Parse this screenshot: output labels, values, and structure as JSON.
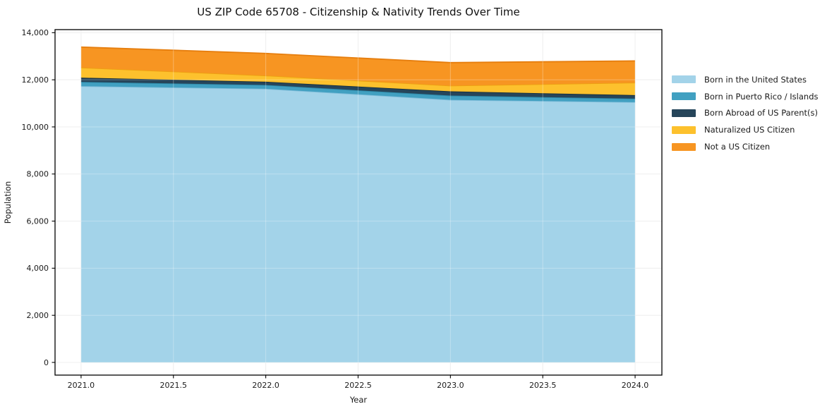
{
  "chart_data": {
    "type": "area",
    "stacked": true,
    "title": "US ZIP Code 65708 - Citizenship & Nativity Trends Over Time",
    "xlabel": "Year",
    "ylabel": "Population",
    "x": [
      2021,
      2022,
      2023,
      2024
    ],
    "series": [
      {
        "name": "Born in the United States",
        "color": "#a3d3e9",
        "edge_color": "#7fbcd9",
        "values": [
          11730,
          11620,
          11150,
          11050
        ]
      },
      {
        "name": "Born in Puerto Rico / Islands",
        "color": "#41a0c1",
        "edge_color": "#2c88a7",
        "values": [
          180,
          160,
          180,
          150
        ]
      },
      {
        "name": "Born Abroad of US Parent(s)",
        "color": "#26455a",
        "edge_color": "#16303f",
        "values": [
          180,
          140,
          180,
          150
        ]
      },
      {
        "name": "Naturalized US Citizen",
        "color": "#fdc12d",
        "edge_color": "#eda011",
        "values": [
          430,
          260,
          240,
          530
        ]
      },
      {
        "name": "Not a US Citizen",
        "color": "#f79522",
        "edge_color": "#e67e0e",
        "values": [
          870,
          940,
          980,
          920
        ]
      }
    ],
    "xlim": [
      2020.859,
      2024.145
    ],
    "ylim": [
      -539,
      14131
    ],
    "xticks": [
      2021.0,
      2021.5,
      2022.0,
      2022.5,
      2023.0,
      2023.5,
      2024.0
    ],
    "yticks": [
      0,
      2000,
      4000,
      6000,
      8000,
      10000,
      12000,
      14000
    ],
    "grid": true,
    "legend_position": "right-outside"
  },
  "colors": {
    "grid": "#e8e8e8",
    "grid_overlay": "rgba(255,255,255,0.30)",
    "spine": "#000000",
    "tick": "#000000",
    "text": "#1a1a1a",
    "background": "#ffffff"
  }
}
